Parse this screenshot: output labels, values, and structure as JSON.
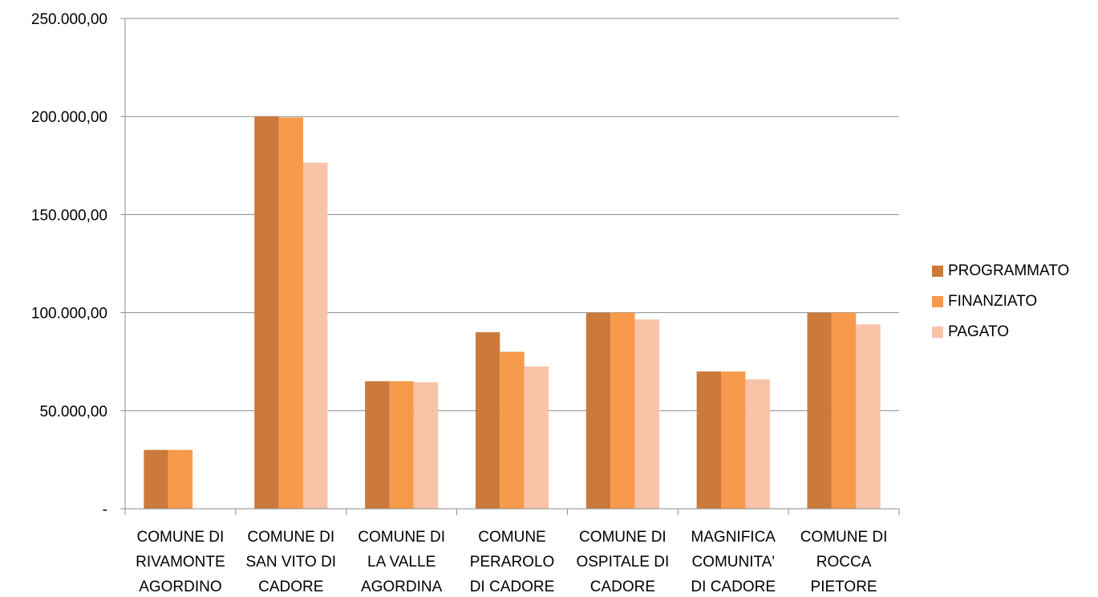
{
  "chart_data": {
    "type": "bar",
    "categories": [
      "COMUNE DI RIVAMONTE AGORDINO",
      "COMUNE DI SAN VITO DI CADORE",
      "COMUNE DI LA VALLE AGORDINA",
      "COMUNE PERAROLO DI CADORE",
      "COMUNE DI OSPITALE DI CADORE",
      "MAGNIFICA COMUNITA' DI CADORE",
      "COMUNE DI ROCCA PIETORE"
    ],
    "category_lines": [
      [
        "COMUNE DI",
        "RIVAMONTE",
        "AGORDINO"
      ],
      [
        "COMUNE DI",
        "SAN VITO DI",
        "CADORE"
      ],
      [
        "COMUNE DI",
        "LA VALLE",
        "AGORDINA"
      ],
      [
        "COMUNE",
        "PERAROLO",
        "DI CADORE"
      ],
      [
        "COMUNE DI",
        "OSPITALE DI",
        "CADORE"
      ],
      [
        "MAGNIFICA",
        "COMUNITA'",
        "DI CADORE"
      ],
      [
        "COMUNE DI",
        "ROCCA",
        "PIETORE"
      ]
    ],
    "series": [
      {
        "name": "PROGRAMMATO",
        "color": "#CC7A3C",
        "values": [
          30000,
          200000,
          65000,
          90000,
          100000,
          70000,
          100000
        ]
      },
      {
        "name": "FINANZIATO",
        "color": "#F79A4B",
        "values": [
          30000,
          199500,
          65000,
          80000,
          100000,
          70000,
          100000
        ]
      },
      {
        "name": "PAGATO",
        "color": "#F9C3A8",
        "values": [
          0,
          176500,
          64500,
          72500,
          96500,
          66000,
          94000
        ]
      }
    ],
    "ylim": [
      0,
      250000
    ],
    "yticks": [
      0,
      50000,
      100000,
      150000,
      200000,
      250000
    ],
    "ytick_labels": [
      "-",
      "50.000,00",
      "100.000,00",
      "150.000,00",
      "200.000,00",
      "250.000,00"
    ],
    "grid": true,
    "legend_position": "right",
    "title": "",
    "xlabel": "",
    "ylabel": ""
  }
}
